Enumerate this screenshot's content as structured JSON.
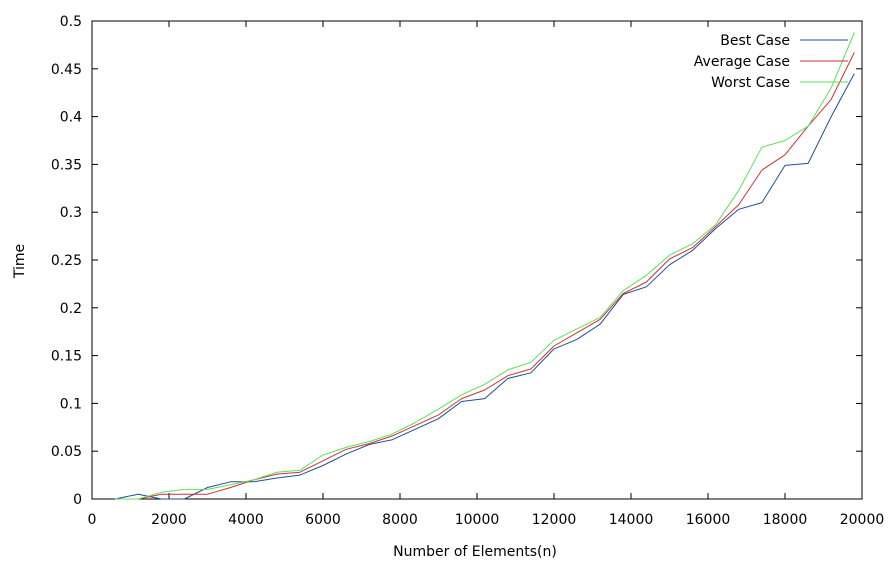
{
  "chart_data": {
    "type": "line",
    "xlabel": "Number of Elements(n)",
    "ylabel": "Time",
    "xlim": [
      0,
      20000
    ],
    "ylim": [
      0,
      0.5
    ],
    "xticks": [
      0,
      2000,
      4000,
      6000,
      8000,
      10000,
      12000,
      14000,
      16000,
      18000,
      20000
    ],
    "yticks": [
      0,
      0.05,
      0.1,
      0.15,
      0.2,
      0.25,
      0.3,
      0.35,
      0.4,
      0.45,
      0.5
    ],
    "yticklabels": [
      "0",
      "0.05",
      "0.1",
      "0.15",
      "0.2",
      "0.25",
      "0.3",
      "0.35",
      "0.4",
      "0.45",
      "0.5"
    ],
    "grid": false,
    "legend_position": "top-right",
    "x": [
      600,
      1200,
      1800,
      2400,
      3000,
      3600,
      4200,
      4800,
      5400,
      6000,
      6600,
      7200,
      7800,
      8400,
      9000,
      9600,
      10200,
      10800,
      11400,
      12000,
      12600,
      13200,
      13800,
      14400,
      15000,
      15600,
      16200,
      16800,
      17400,
      18000,
      18600,
      19200,
      19800
    ],
    "series": [
      {
        "name": "Best Case",
        "color": "#1f4e99",
        "values": [
          0,
          0.005,
          0.0,
          0.0,
          0.012,
          0.018,
          0.018,
          0.022,
          0.025,
          0.035,
          0.047,
          0.057,
          0.062,
          0.073,
          0.084,
          0.102,
          0.105,
          0.126,
          0.132,
          0.157,
          0.167,
          0.183,
          0.214,
          0.222,
          0.245,
          0.26,
          0.283,
          0.303,
          0.31,
          0.349,
          0.351,
          0.4,
          0.445
        ]
      },
      {
        "name": "Average Case",
        "color": "#cc3333",
        "values": [
          0,
          0.0,
          0.005,
          0.005,
          0.005,
          0.012,
          0.02,
          0.026,
          0.028,
          0.04,
          0.052,
          0.058,
          0.066,
          0.077,
          0.088,
          0.105,
          0.114,
          0.129,
          0.136,
          0.16,
          0.174,
          0.188,
          0.215,
          0.227,
          0.251,
          0.263,
          0.285,
          0.308,
          0.344,
          0.36,
          0.39,
          0.418,
          0.467
        ]
      },
      {
        "name": "Worst Case",
        "color": "#5ce05c",
        "values": [
          0,
          0.0,
          0.007,
          0.01,
          0.01,
          0.015,
          0.02,
          0.028,
          0.03,
          0.046,
          0.054,
          0.06,
          0.068,
          0.08,
          0.094,
          0.109,
          0.12,
          0.135,
          0.143,
          0.166,
          0.178,
          0.19,
          0.218,
          0.234,
          0.255,
          0.267,
          0.287,
          0.323,
          0.368,
          0.375,
          0.39,
          0.43,
          0.488
        ]
      }
    ]
  }
}
